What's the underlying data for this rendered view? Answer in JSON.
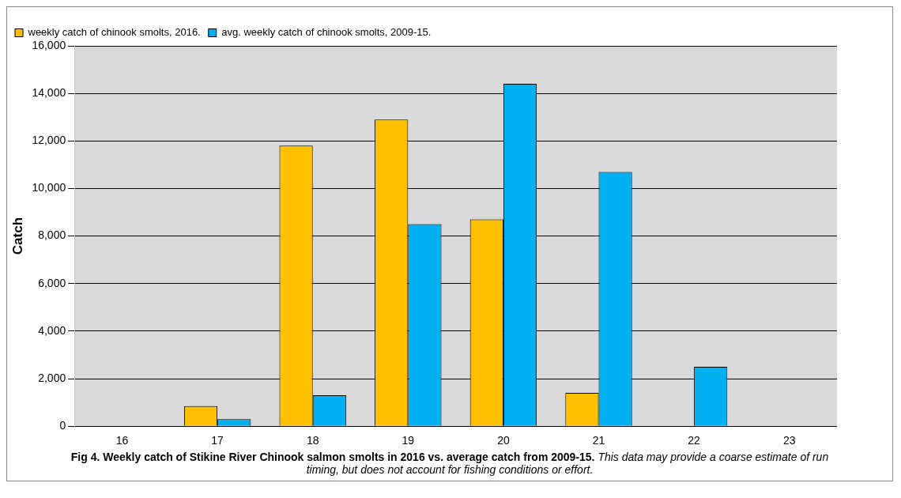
{
  "chart_data": {
    "type": "bar",
    "title": "Fig 4. Weekly catch of Stikine River Chinook salmon smolts in 2016 vs. average catch from 2009-15.",
    "ylabel": "Catch",
    "annotations": [
      "This data may provide a coarse estimate of run timing, but does not account for fishing conditions or effort."
    ],
    "categories": [
      "16",
      "17",
      "18",
      "19",
      "20",
      "21",
      "22",
      "23"
    ],
    "series": [
      {
        "name": "weekly catch of chinook smolts, 2016.",
        "color": "#ffc000",
        "values": [
          0,
          850,
          11800,
          12900,
          8700,
          1400,
          0,
          0
        ]
      },
      {
        "name": "avg. weekly catch of chinook smolts, 2009-15.",
        "color": "#00b0f0",
        "values": [
          0,
          300,
          1300,
          8500,
          14400,
          10700,
          2500,
          0
        ]
      }
    ],
    "ylim": [
      0,
      16000
    ],
    "yticks": [
      0,
      {
        "value": 2000,
        "label": "2,000"
      },
      {
        "value": 4000,
        "label": "4,000"
      },
      {
        "value": 6000,
        "label": "6,000"
      },
      {
        "value": 8000,
        "label": "8,000"
      },
      {
        "value": 10000,
        "label": "10,000"
      },
      {
        "value": 12000,
        "label": "12,000"
      },
      {
        "value": 14000,
        "label": "14,000"
      },
      {
        "value": 16000,
        "label": "16,000"
      }
    ],
    "grid": "y",
    "legend": "top left"
  }
}
